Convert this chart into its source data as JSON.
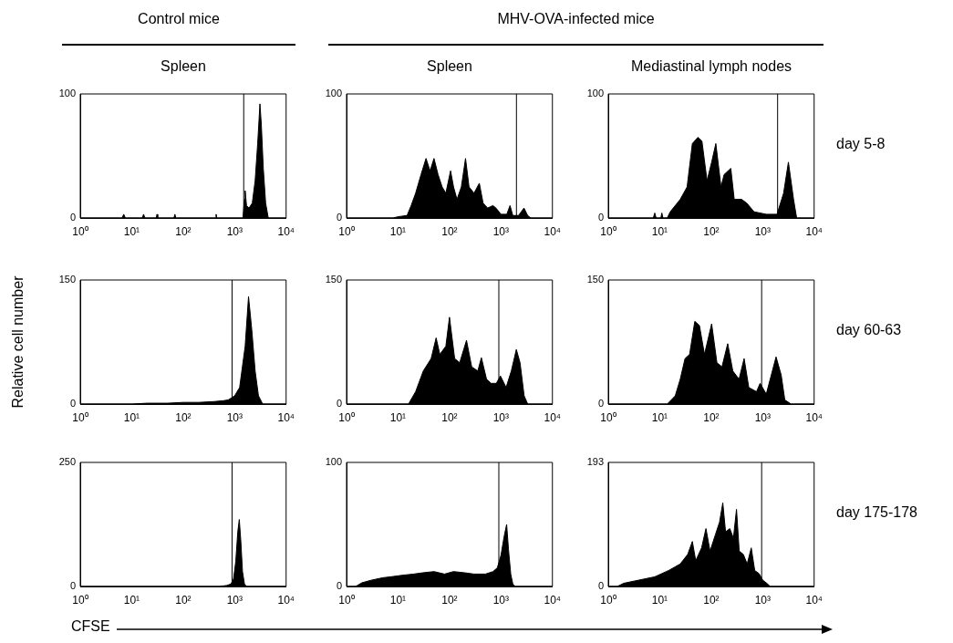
{
  "chart_data": [
    {
      "type": "area",
      "title": "Control mice",
      "subtitle": "Spleen",
      "log": "x",
      "grid": false,
      "xlim": [
        1,
        10000
      ],
      "ylim": [
        0,
        100
      ],
      "yticks": [
        0,
        100
      ],
      "xticks": [
        {
          "value": 1,
          "label": "10⁰"
        },
        {
          "value": 10,
          "label": "10¹"
        },
        {
          "value": 100,
          "label": "10²"
        },
        {
          "value": 1000,
          "label": "10³"
        },
        {
          "value": 10000,
          "label": "10⁴"
        }
      ],
      "ref_lines": [
        {
          "axis": "x",
          "value": 1500,
          "color": "#000000"
        }
      ],
      "series": [
        {
          "color": "#000000",
          "x": [
            1,
            6.5,
            7,
            7.5,
            16,
            17,
            18,
            30,
            31,
            32,
            66,
            69,
            72,
            420,
            436,
            450,
            1450,
            1550,
            1600,
            1700,
            1900,
            2200,
            2500,
            2800,
            3100,
            3300,
            3600,
            4000,
            4500,
            10000
          ],
          "values": [
            0,
            0,
            3,
            0,
            0,
            3,
            0,
            0,
            3,
            0,
            0,
            3,
            0,
            0,
            3,
            0,
            0,
            15,
            22,
            10,
            8,
            12,
            30,
            60,
            92,
            75,
            40,
            12,
            0,
            0
          ]
        }
      ]
    },
    {
      "type": "area",
      "title": "MHV-OVA-infected mice",
      "subtitle": "Spleen",
      "log": "x",
      "grid": false,
      "xlim": [
        1,
        10000
      ],
      "ylim": [
        0,
        100
      ],
      "yticks": [
        0,
        100
      ],
      "xticks": [
        {
          "value": 1,
          "label": "10⁰"
        },
        {
          "value": 10,
          "label": "10¹"
        },
        {
          "value": 100,
          "label": "10²"
        },
        {
          "value": 1000,
          "label": "10³"
        },
        {
          "value": 10000,
          "label": "10⁴"
        }
      ],
      "ref_lines": [
        {
          "axis": "x",
          "value": 2000,
          "color": "#000000"
        }
      ],
      "series": [
        {
          "color": "#000000",
          "x": [
            1,
            8,
            10,
            15,
            18,
            22,
            28,
            35,
            42,
            50,
            60,
            72,
            85,
            105,
            120,
            140,
            170,
            205,
            240,
            300,
            380,
            450,
            550,
            700,
            800,
            1000,
            1300,
            1500,
            1700,
            2200,
            2800,
            3300,
            3800,
            10000
          ],
          "values": [
            0,
            0,
            1,
            2,
            10,
            20,
            35,
            48,
            38,
            48,
            35,
            25,
            20,
            38,
            25,
            15,
            25,
            48,
            25,
            20,
            28,
            12,
            8,
            10,
            8,
            3,
            3,
            10,
            2,
            2,
            8,
            2,
            0,
            0
          ]
        }
      ]
    },
    {
      "type": "area",
      "subtitle": "Mediastinal lymph nodes",
      "annotations": [
        "day 5-8"
      ],
      "log": "x",
      "grid": false,
      "xlim": [
        1,
        10000
      ],
      "ylim": [
        0,
        100
      ],
      "yticks": [
        0,
        100
      ],
      "xticks": [
        {
          "value": 1,
          "label": "10⁰"
        },
        {
          "value": 10,
          "label": "10¹"
        },
        {
          "value": 100,
          "label": "10²"
        },
        {
          "value": 1000,
          "label": "10³"
        },
        {
          "value": 10000,
          "label": "10⁴"
        }
      ],
      "ref_lines": [
        {
          "axis": "x",
          "value": 1950,
          "color": "#000000"
        }
      ],
      "series": [
        {
          "color": "#000000",
          "x": [
            1,
            7.5,
            8,
            8.5,
            10.5,
            11,
            11.5,
            14,
            16,
            25,
            34,
            43,
            55,
            66,
            83,
            102,
            123,
            155,
            178,
            240,
            280,
            390,
            490,
            680,
            1170,
            1900,
            2550,
            3160,
            3980,
            4570,
            10000
          ],
          "values": [
            0,
            0,
            4,
            0,
            0,
            4,
            0,
            0,
            5,
            15,
            25,
            60,
            65,
            62,
            30,
            45,
            60,
            25,
            35,
            40,
            15,
            15,
            12,
            5,
            3,
            3,
            20,
            45,
            15,
            0,
            0
          ]
        }
      ]
    },
    {
      "type": "area",
      "ylabel": "Relative cell number",
      "log": "x",
      "grid": false,
      "xlim": [
        1,
        10000
      ],
      "ylim": [
        0,
        150
      ],
      "yticks": [
        0,
        150
      ],
      "xticks": [
        {
          "value": 1,
          "label": "10⁰"
        },
        {
          "value": 10,
          "label": "10¹"
        },
        {
          "value": 100,
          "label": "10²"
        },
        {
          "value": 1000,
          "label": "10³"
        },
        {
          "value": 10000,
          "label": "10⁴"
        }
      ],
      "ref_lines": [
        {
          "axis": "x",
          "value": 890,
          "color": "#000000"
        }
      ],
      "series": [
        {
          "color": "#000000",
          "x": [
            1,
            10,
            20,
            50,
            100,
            200,
            400,
            600,
            750,
            1000,
            1250,
            1600,
            1860,
            2150,
            2500,
            2900,
            3500,
            10000
          ],
          "values": [
            0,
            0,
            1,
            1,
            2,
            2,
            3,
            4,
            5,
            10,
            20,
            70,
            130,
            90,
            40,
            10,
            0,
            0
          ]
        }
      ]
    },
    {
      "type": "area",
      "log": "x",
      "grid": false,
      "xlim": [
        1,
        10000
      ],
      "ylim": [
        0,
        150
      ],
      "yticks": [
        0,
        150
      ],
      "xticks": [
        {
          "value": 1,
          "label": "10⁰"
        },
        {
          "value": 10,
          "label": "10¹"
        },
        {
          "value": 100,
          "label": "10²"
        },
        {
          "value": 1000,
          "label": "10³"
        },
        {
          "value": 10000,
          "label": "10⁴"
        }
      ],
      "ref_lines": [
        {
          "axis": "x",
          "value": 910,
          "color": "#000000"
        }
      ],
      "series": [
        {
          "color": "#000000",
          "x": [
            1,
            16,
            22,
            31,
            44,
            55,
            65,
            85,
            100,
            126,
            158,
            214,
            270,
            355,
            417,
            525,
            646,
            813,
            977,
            1260,
            1590,
            1990,
            2350,
            2820,
            3310,
            10000
          ],
          "values": [
            0,
            0,
            15,
            40,
            55,
            80,
            60,
            70,
            105,
            55,
            50,
            77,
            45,
            40,
            56,
            30,
            25,
            25,
            34,
            20,
            40,
            66,
            50,
            10,
            0,
            0
          ]
        }
      ]
    },
    {
      "type": "area",
      "annotations": [
        "day 60-63"
      ],
      "log": "x",
      "grid": false,
      "xlim": [
        1,
        10000
      ],
      "ylim": [
        0,
        150
      ],
      "yticks": [
        0,
        150
      ],
      "xticks": [
        {
          "value": 1,
          "label": "10⁰"
        },
        {
          "value": 10,
          "label": "10¹"
        },
        {
          "value": 100,
          "label": "10²"
        },
        {
          "value": 1000,
          "label": "10³"
        },
        {
          "value": 10000,
          "label": "10⁴"
        }
      ],
      "ref_lines": [
        {
          "axis": "x",
          "value": 955,
          "color": "#000000"
        }
      ],
      "series": [
        {
          "color": "#000000",
          "x": [
            1,
            14,
            20,
            25,
            31,
            38,
            48,
            59,
            74,
            102,
            129,
            162,
            209,
            263,
            347,
            436,
            537,
            759,
            891,
            1175,
            1820,
            2290,
            2690,
            3550,
            10000
          ],
          "values": [
            0,
            0,
            10,
            30,
            55,
            60,
            100,
            95,
            60,
            97,
            50,
            45,
            73,
            40,
            30,
            55,
            20,
            15,
            25,
            12,
            57,
            35,
            5,
            0,
            0
          ]
        }
      ]
    },
    {
      "type": "area",
      "xlabel": "CFSE",
      "log": "x",
      "grid": false,
      "xlim": [
        1,
        10000
      ],
      "ylim": [
        0,
        250
      ],
      "yticks": [
        0,
        250
      ],
      "xticks": [
        {
          "value": 1,
          "label": "10⁰"
        },
        {
          "value": 10,
          "label": "10¹"
        },
        {
          "value": 100,
          "label": "10²"
        },
        {
          "value": 1000,
          "label": "10³"
        },
        {
          "value": 10000,
          "label": "10⁴"
        }
      ],
      "ref_lines": [
        {
          "axis": "x",
          "value": 890,
          "color": "#000000"
        }
      ],
      "series": [
        {
          "color": "#000000",
          "x": [
            1,
            500,
            700,
            850,
            950,
            1050,
            1150,
            1230,
            1320,
            1420,
            1550,
            1700,
            10000
          ],
          "values": [
            0,
            0,
            2,
            5,
            15,
            50,
            110,
            135,
            90,
            30,
            5,
            0,
            0
          ]
        }
      ]
    },
    {
      "type": "area",
      "log": "x",
      "grid": false,
      "xlim": [
        1,
        10000
      ],
      "ylim": [
        0,
        100
      ],
      "yticks": [
        0,
        100
      ],
      "xticks": [
        {
          "value": 1,
          "label": "10⁰"
        },
        {
          "value": 10,
          "label": "10¹"
        },
        {
          "value": 100,
          "label": "10²"
        },
        {
          "value": 1000,
          "label": "10³"
        },
        {
          "value": 10000,
          "label": "10⁴"
        }
      ],
      "ref_lines": [
        {
          "axis": "x",
          "value": 910,
          "color": "#000000"
        }
      ],
      "series": [
        {
          "color": "#000000",
          "x": [
            1,
            1.5,
            2,
            3,
            5,
            8,
            12,
            20,
            30,
            50,
            80,
            120,
            200,
            300,
            500,
            700,
            850,
            1000,
            1150,
            1290,
            1400,
            1550,
            1700,
            1900,
            10000
          ],
          "values": [
            0,
            0,
            3,
            5,
            7,
            8,
            9,
            10,
            11,
            12,
            10,
            12,
            11,
            10,
            10,
            12,
            15,
            25,
            40,
            50,
            30,
            10,
            2,
            0,
            0
          ]
        }
      ]
    },
    {
      "type": "area",
      "annotations": [
        "day 175-178"
      ],
      "log": "x",
      "grid": false,
      "xlim": [
        1,
        10000
      ],
      "ylim": [
        0,
        193
      ],
      "yticks": [
        0,
        193
      ],
      "xticks": [
        {
          "value": 1,
          "label": "10⁰"
        },
        {
          "value": 10,
          "label": "10¹"
        },
        {
          "value": 100,
          "label": "10²"
        },
        {
          "value": 1000,
          "label": "10³"
        },
        {
          "value": 10000,
          "label": "10⁴"
        }
      ],
      "ref_lines": [
        {
          "axis": "x",
          "value": 955,
          "color": "#000000"
        }
      ],
      "series": [
        {
          "color": "#000000",
          "x": [
            1,
            1.5,
            2,
            4,
            8,
            15,
            25,
            35,
            43,
            50,
            65,
            79,
            95,
            120,
            145,
            168,
            190,
            230,
            270,
            310,
            350,
            420,
            500,
            600,
            700,
            850,
            1000,
            1200,
            1400,
            10000
          ],
          "values": [
            0,
            0,
            5,
            10,
            15,
            25,
            35,
            50,
            70,
            40,
            60,
            90,
            55,
            80,
            100,
            130,
            85,
            90,
            75,
            120,
            55,
            50,
            35,
            60,
            25,
            20,
            10,
            5,
            0,
            0
          ]
        }
      ]
    }
  ]
}
